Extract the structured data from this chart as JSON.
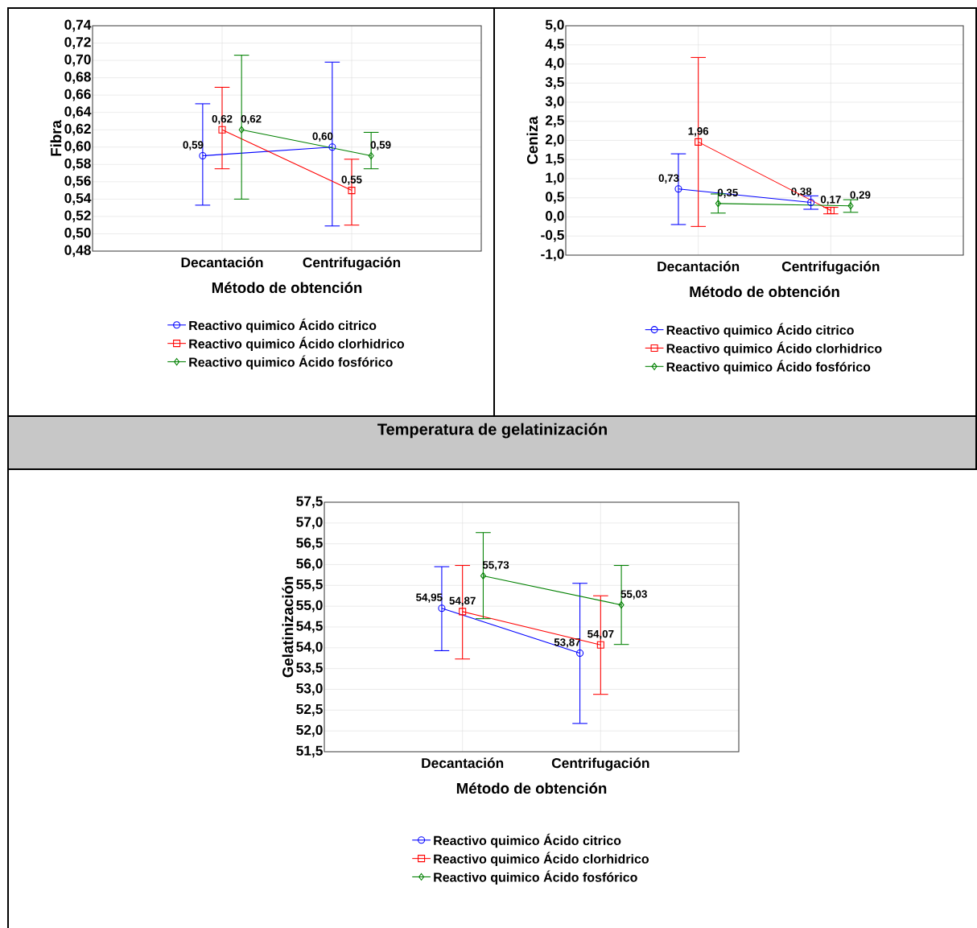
{
  "chart_data": [
    {
      "type": "line",
      "xlabel": "Método de obtención",
      "ylabel": "Fibra",
      "categories": [
        "Decantación",
        "Centrifugación"
      ],
      "ylim": [
        0.48,
        0.74
      ],
      "yticks": [
        {
          "value": 0.48,
          "label": "0,48"
        },
        {
          "value": 0.5,
          "label": "0,50"
        },
        {
          "value": 0.52,
          "label": "0,52"
        },
        {
          "value": 0.54,
          "label": "0,54"
        },
        {
          "value": 0.56,
          "label": "0,56"
        },
        {
          "value": 0.58,
          "label": "0,58"
        },
        {
          "value": 0.6,
          "label": "0,60"
        },
        {
          "value": 0.62,
          "label": "0,62"
        },
        {
          "value": 0.64,
          "label": "0,64"
        },
        {
          "value": 0.66,
          "label": "0,66"
        },
        {
          "value": 0.68,
          "label": "0,68"
        },
        {
          "value": 0.7,
          "label": "0,70"
        },
        {
          "value": 0.72,
          "label": "0,72"
        },
        {
          "value": 0.74,
          "label": "0,74"
        }
      ],
      "grid": true,
      "legend": "bottom",
      "line_style": "solid",
      "series": [
        {
          "name": "Reactivo quimico Ácido citrico",
          "color": "#0000ff",
          "marker": "circle",
          "values": [
            0.59,
            0.6
          ],
          "value_labels": [
            "0,59",
            "0,60"
          ],
          "errors": [
            [
              0.533,
              0.65
            ],
            [
              0.509,
              0.698
            ]
          ]
        },
        {
          "name": "Reactivo quimico Ácido clorhidrico",
          "color": "#ff0000",
          "marker": "square",
          "values": [
            0.62,
            0.55
          ],
          "value_labels": [
            "0,62",
            "0,55"
          ],
          "errors": [
            [
              0.575,
              0.669
            ],
            [
              0.51,
              0.586
            ]
          ]
        },
        {
          "name": "Reactivo quimico Ácido fosfórico",
          "color": "#008000",
          "marker": "diamond",
          "values": [
            0.62,
            0.59
          ],
          "value_labels": [
            "0,62",
            "0,59"
          ],
          "errors": [
            [
              0.54,
              0.706
            ],
            [
              0.575,
              0.617
            ]
          ]
        }
      ]
    },
    {
      "type": "line",
      "xlabel": "Método de obtención",
      "ylabel": "Ceniza",
      "categories": [
        "Decantación",
        "Centrifugación"
      ],
      "ylim": [
        -1.0,
        5.0
      ],
      "yticks": [
        {
          "value": -1.0,
          "label": "-1,0"
        },
        {
          "value": -0.5,
          "label": "-0,5"
        },
        {
          "value": 0.0,
          "label": "0,0"
        },
        {
          "value": 0.5,
          "label": "0,5"
        },
        {
          "value": 1.0,
          "label": "1,0"
        },
        {
          "value": 1.5,
          "label": "1,5"
        },
        {
          "value": 2.0,
          "label": "2,0"
        },
        {
          "value": 2.5,
          "label": "2,5"
        },
        {
          "value": 3.0,
          "label": "3,0"
        },
        {
          "value": 3.5,
          "label": "3,5"
        },
        {
          "value": 4.0,
          "label": "4,0"
        },
        {
          "value": 4.5,
          "label": "4,5"
        },
        {
          "value": 5.0,
          "label": "5,0"
        }
      ],
      "grid": true,
      "legend": "bottom",
      "line_style": "solid",
      "series": [
        {
          "name": "Reactivo quimico Ácido citrico",
          "color": "#0000ff",
          "marker": "circle",
          "values": [
            0.73,
            0.38
          ],
          "value_labels": [
            "0,73",
            "0,38"
          ],
          "errors": [
            [
              -0.2,
              1.65
            ],
            [
              0.2,
              0.55
            ]
          ]
        },
        {
          "name": "Reactivo quimico Ácido clorhidrico",
          "color": "#ff0000",
          "marker": "square",
          "values": [
            1.96,
            0.17
          ],
          "value_labels": [
            "1,96",
            "0,17"
          ],
          "errors": [
            [
              -0.25,
              4.17
            ],
            [
              0.08,
              0.25
            ]
          ]
        },
        {
          "name": "Reactivo quimico Ácido fosfórico",
          "color": "#008000",
          "marker": "diamond",
          "values": [
            0.35,
            0.29
          ],
          "value_labels": [
            "0,35",
            "0,29"
          ],
          "errors": [
            [
              0.1,
              0.6
            ],
            [
              0.12,
              0.45
            ]
          ]
        }
      ]
    },
    {
      "type": "line",
      "title": "Temperatura de gelatinización",
      "xlabel": "Método de obtención",
      "ylabel": "Gelatinización",
      "categories": [
        "Decantación",
        "Centrifugación"
      ],
      "ylim": [
        51.5,
        57.5
      ],
      "yticks": [
        {
          "value": 51.5,
          "label": "51,5"
        },
        {
          "value": 52.0,
          "label": "52,0"
        },
        {
          "value": 52.5,
          "label": "52,5"
        },
        {
          "value": 53.0,
          "label": "53,0"
        },
        {
          "value": 53.5,
          "label": "53,5"
        },
        {
          "value": 54.0,
          "label": "54,0"
        },
        {
          "value": 54.5,
          "label": "54,5"
        },
        {
          "value": 55.0,
          "label": "55,0"
        },
        {
          "value": 55.5,
          "label": "55,5"
        },
        {
          "value": 56.0,
          "label": "56,0"
        },
        {
          "value": 56.5,
          "label": "56,5"
        },
        {
          "value": 57.0,
          "label": "57,0"
        },
        {
          "value": 57.5,
          "label": "57,5"
        }
      ],
      "grid": true,
      "legend": "bottom",
      "line_style": "solid",
      "series": [
        {
          "name": "Reactivo quimico Ácido citrico",
          "color": "#0000ff",
          "marker": "circle",
          "values": [
            54.95,
            53.87
          ],
          "value_labels": [
            "54,95",
            "53,87"
          ],
          "errors": [
            [
              53.93,
              55.95
            ],
            [
              52.18,
              55.55
            ]
          ]
        },
        {
          "name": "Reactivo quimico Ácido clorhidrico",
          "color": "#ff0000",
          "marker": "square",
          "values": [
            54.87,
            54.07
          ],
          "value_labels": [
            "54,87",
            "54,07"
          ],
          "errors": [
            [
              53.73,
              55.98
            ],
            [
              52.88,
              55.25
            ]
          ]
        },
        {
          "name": "Reactivo quimico Ácido fosfórico",
          "color": "#008000",
          "marker": "diamond",
          "values": [
            55.73,
            55.03
          ],
          "value_labels": [
            "55,73",
            "55,03"
          ],
          "errors": [
            [
              54.7,
              56.77
            ],
            [
              54.08,
              55.98
            ]
          ]
        }
      ]
    }
  ]
}
